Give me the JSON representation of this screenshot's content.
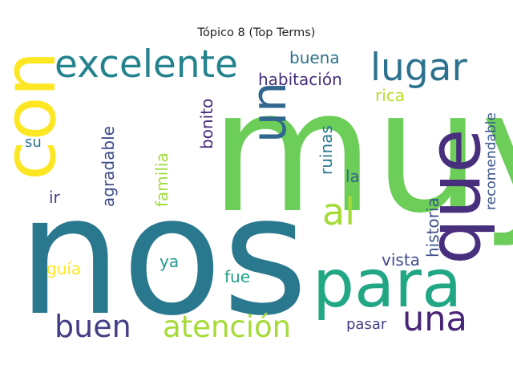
{
  "title": "Tópico 8 (Top Terms)",
  "words": [
    {
      "text": "muy",
      "color": "#6ccd59",
      "orientation": "horizontal"
    },
    {
      "text": "nos",
      "color": "#2a788e",
      "orientation": "horizontal"
    },
    {
      "text": "con",
      "color": "#fde725",
      "orientation": "vertical"
    },
    {
      "text": "que",
      "color": "#472f7d",
      "orientation": "vertical"
    },
    {
      "text": "para",
      "color": "#22a785",
      "orientation": "horizontal"
    },
    {
      "text": "excelente",
      "color": "#25838e",
      "orientation": "horizontal"
    },
    {
      "text": "lugar",
      "color": "#2c728e",
      "orientation": "horizontal"
    },
    {
      "text": "un",
      "color": "#31668e",
      "orientation": "vertical"
    },
    {
      "text": "al",
      "color": "#a5db36",
      "orientation": "horizontal"
    },
    {
      "text": "una",
      "color": "#482576",
      "orientation": "horizontal"
    },
    {
      "text": "buen",
      "color": "#433e85",
      "orientation": "horizontal"
    },
    {
      "text": "atención",
      "color": "#a5db36",
      "orientation": "horizontal"
    },
    {
      "text": "buena",
      "color": "#2c728e",
      "orientation": "horizontal"
    },
    {
      "text": "habitación",
      "color": "#46307e",
      "orientation": "horizontal"
    },
    {
      "text": "rica",
      "color": "#b5de2b",
      "orientation": "horizontal"
    },
    {
      "text": "bonito",
      "color": "#472c7a",
      "orientation": "vertical"
    },
    {
      "text": "recomendable",
      "color": "#39558c",
      "orientation": "vertical"
    },
    {
      "text": "ruinas",
      "color": "#2a788e",
      "orientation": "vertical"
    },
    {
      "text": "agradable",
      "color": "#3e4a89",
      "orientation": "vertical"
    },
    {
      "text": "familia",
      "color": "#9fda3a",
      "orientation": "vertical"
    },
    {
      "text": "historia",
      "color": "#3b528b",
      "orientation": "vertical"
    },
    {
      "text": "su",
      "color": "#2c728e",
      "orientation": "horizontal"
    },
    {
      "text": "la",
      "color": "#31668e",
      "orientation": "horizontal"
    },
    {
      "text": "ir",
      "color": "#424086",
      "orientation": "horizontal"
    },
    {
      "text": "guía",
      "color": "#fde725",
      "orientation": "horizontal"
    },
    {
      "text": "ya",
      "color": "#1f988b",
      "orientation": "horizontal"
    },
    {
      "text": "vista",
      "color": "#3e4a89",
      "orientation": "horizontal"
    },
    {
      "text": "fue",
      "color": "#1fa187",
      "orientation": "horizontal"
    },
    {
      "text": "pasar",
      "color": "#433e85",
      "orientation": "horizontal"
    }
  ]
}
